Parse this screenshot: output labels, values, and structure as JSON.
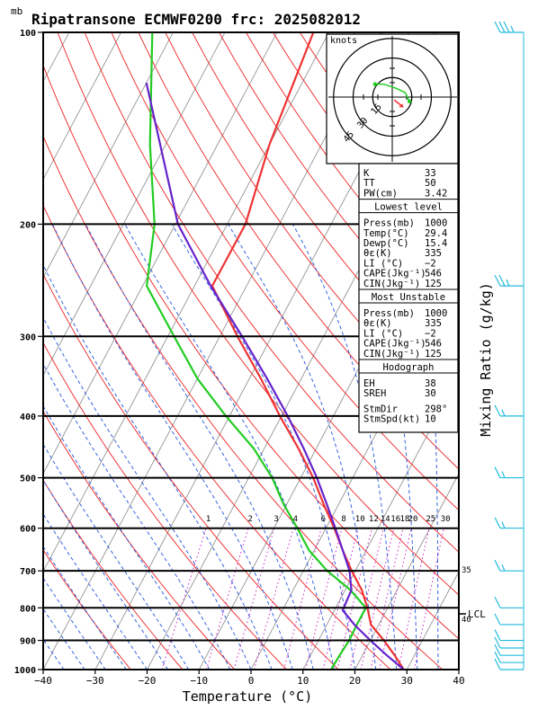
{
  "header": {
    "unit_label": "mb",
    "title": "Ripatransone ECMWF0200 frc: 2025082012"
  },
  "chart_data": {
    "type": "line",
    "title": "Ripatransone ECMWF0200 frc: 2025082012",
    "xlabel": "Temperature (°C)",
    "ylabel": "Mixing Ratio (g/kg)",
    "y_unit": "mb",
    "xlim": [
      -40,
      40
    ],
    "ylim": [
      1000,
      100
    ],
    "y_scale": "log",
    "x_ticks": [
      -40,
      -30,
      -20,
      -10,
      0,
      10,
      20,
      30,
      40
    ],
    "p_ticks": [
      100,
      200,
      300,
      400,
      500,
      600,
      700,
      800,
      900,
      1000
    ],
    "isobars": [
      200,
      300,
      400,
      500,
      600,
      700,
      800,
      900,
      1000
    ],
    "skew_per_decade_c": 65,
    "mixing_ratio_labels": [
      "1",
      "2",
      "3",
      "4",
      "6",
      "8",
      "10",
      "12",
      "14",
      "16",
      "18",
      "20",
      "25",
      "30"
    ],
    "mixing_ratio_values": [
      1,
      2,
      3,
      4,
      6,
      8,
      10,
      12,
      14,
      16,
      18,
      20,
      25,
      30
    ],
    "right_side_labels": [
      "35",
      "40"
    ],
    "lcl_label": "LCL",
    "lcl_p": 807,
    "series": [
      {
        "color": "#ee3333",
        "p": [
          1000,
          950,
          900,
          850,
          800,
          750,
          700,
          650,
          600,
          550,
          500,
          450,
          400,
          350,
          300,
          250,
          200,
          150,
          100
        ],
        "t": [
          29.4,
          26.2,
          22.6,
          18.5,
          16.1,
          13.2,
          9.3,
          5.5,
          1.6,
          -2.9,
          -7.6,
          -13.4,
          -20.3,
          -27.7,
          -36.6,
          -46.6,
          -46.5,
          -50,
          -53
        ]
      },
      {
        "color": "#22cc22",
        "p": [
          1000,
          950,
          900,
          850,
          800,
          750,
          700,
          650,
          600,
          550,
          500,
          450,
          400,
          350,
          300,
          250,
          200,
          150,
          100
        ],
        "t": [
          15.4,
          15.6,
          15.9,
          15.8,
          15.8,
          11.0,
          4.6,
          -1.0,
          -5.5,
          -10.6,
          -15.5,
          -22,
          -30.7,
          -39.9,
          -48.8,
          -59.2,
          -64,
          -73,
          -84
        ]
      },
      {
        "color": "#6622cc",
        "p": [
          1000,
          950,
          900,
          850,
          807,
          750,
          700,
          650,
          600,
          550,
          500,
          450,
          400,
          350,
          300,
          250,
          200,
          120
        ],
        "t": [
          29.4,
          24.7,
          20.0,
          15.3,
          11.6,
          11.2,
          8.9,
          5.5,
          1.8,
          -2.3,
          -6.9,
          -12.4,
          -18.8,
          -26.5,
          -35.7,
          -46.9,
          -59.5,
          -80
        ]
      }
    ],
    "grid": true
  },
  "hodograph": {
    "unit_label": "knots",
    "ring_labels": [
      "15",
      "30",
      "45"
    ],
    "ring_values": [
      15,
      30,
      45
    ],
    "trace_knots": [
      [
        -4,
        3
      ],
      [
        -2,
        3
      ],
      [
        1,
        2
      ],
      [
        3,
        1
      ],
      [
        4,
        -1
      ]
    ],
    "storm_motion_knots": [
      1,
      -1
    ]
  },
  "indices": {
    "k_label": "K",
    "k_value": "33",
    "tt_label": "TT",
    "tt_value": "50",
    "pw_label": "PW(cm)",
    "pw_value": "3.42",
    "lowest_title": "Lowest level",
    "lowest_rows": [
      {
        "label": "Press(mb)",
        "value": "1000"
      },
      {
        "label": "Temp(°C)",
        "value": "29.4"
      },
      {
        "label": "Dewp(°C)",
        "value": "15.4"
      },
      {
        "label": "θε(K)",
        "value": "335"
      },
      {
        "label": "LI (°C)",
        "value": "−2"
      },
      {
        "label": "CAPE(Jkg⁻¹)",
        "value": "546"
      },
      {
        "label": "CIN(Jkg⁻¹)",
        "value": "125"
      }
    ],
    "unstable_title": "Most Unstable",
    "unstable_rows": [
      {
        "label": "Press(mb)",
        "value": "1000"
      },
      {
        "label": "θε(K)",
        "value": "335"
      },
      {
        "label": "LI (°C)",
        "value": "−2"
      },
      {
        "label": "CAPE(Jkg⁻¹)",
        "value": "546"
      },
      {
        "label": "CIN(Jkg⁻¹)",
        "value": "125"
      }
    ],
    "hodo_title": "Hodograph",
    "hodo_rows": [
      {
        "label": "EH",
        "value": "38"
      },
      {
        "label": "SREH",
        "value": "30"
      }
    ],
    "storm_rows": [
      {
        "label": "StmDir",
        "value": "298°"
      },
      {
        "label": "StmSpd(kt)",
        "value": "10"
      }
    ]
  },
  "wind_barbs": {
    "color": "#22bbdd",
    "levels_mb": [
      100,
      250,
      400,
      500,
      600,
      700,
      800,
      850,
      900,
      925,
      950,
      975,
      1000
    ],
    "speed_kt": [
      35,
      25,
      15,
      15,
      15,
      15,
      10,
      10,
      10,
      10,
      10,
      10,
      10
    ]
  },
  "colors": {
    "temperature": "#ee3333",
    "dewpoint": "#22cc22",
    "parcel": "#6622cc",
    "dry_adiabat": "#ee2222",
    "moist_adiabat": "#2255dd",
    "mixing_ratio": "#cc22cc",
    "isotherm": "#888888"
  }
}
